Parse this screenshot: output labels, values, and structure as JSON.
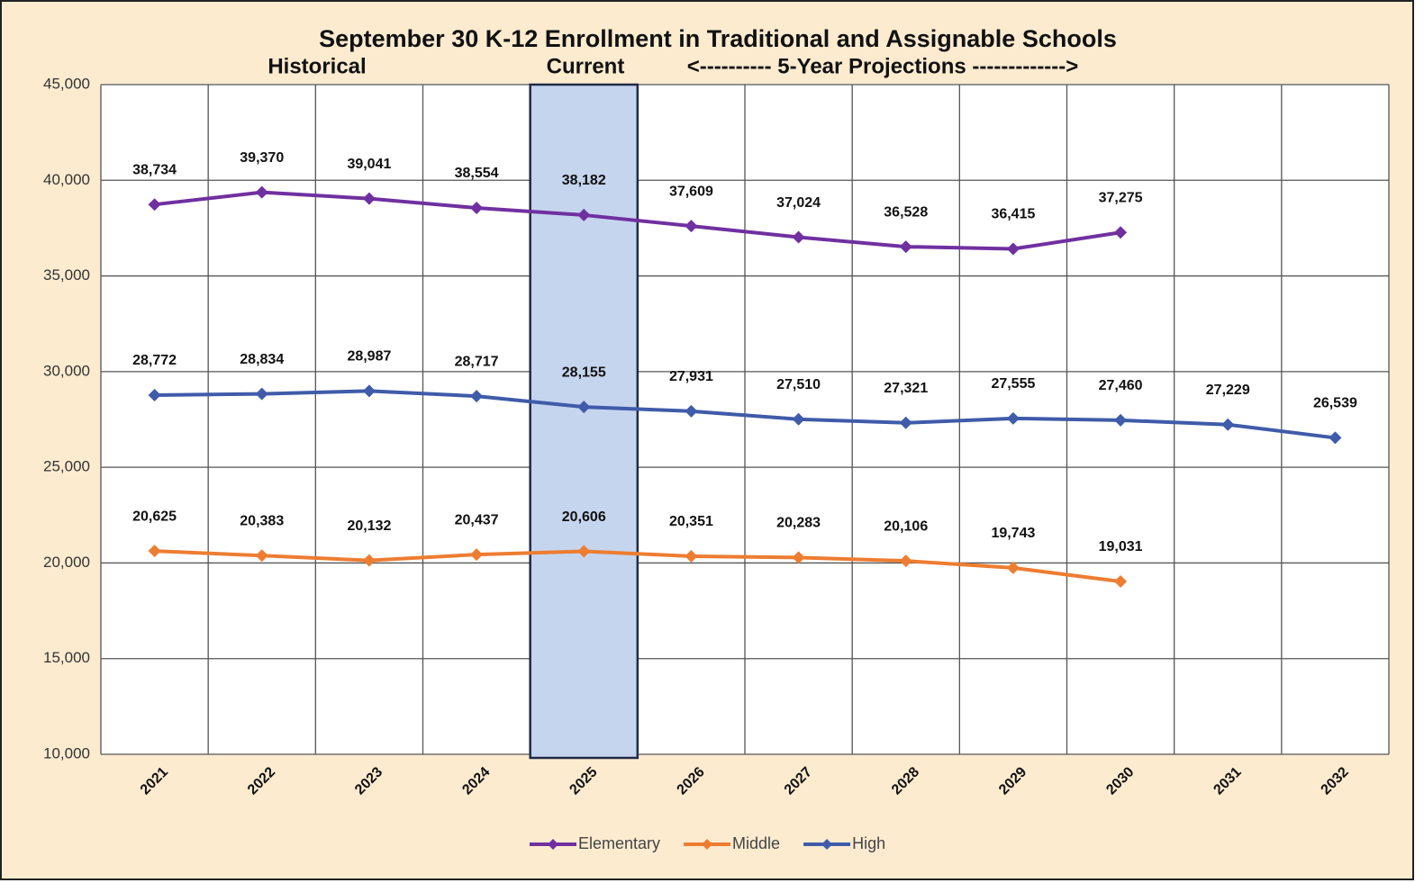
{
  "chart_data": {
    "type": "line",
    "title": "September 30 K-12 Enrollment in Traditional and Assignable Schools",
    "annotations": [
      "Historical",
      "Current",
      "<---------- 5-Year Projections ------------->"
    ],
    "categories": [
      "2021",
      "2022",
      "2023",
      "2024",
      "2025",
      "2026",
      "2027",
      "2028",
      "2029",
      "2030",
      "2031",
      "2032"
    ],
    "series": [
      {
        "name": "Elementary",
        "color": "#7030A0",
        "values": [
          38734,
          39370,
          39041,
          38554,
          38182,
          37609,
          37024,
          36528,
          36415,
          37275,
          null,
          null
        ],
        "value_labels": [
          "38,734",
          "39,370",
          "39,041",
          "38,554",
          "38,182",
          "37,609",
          "37,024",
          "36,528",
          "36,415",
          "37,275",
          null,
          null
        ]
      },
      {
        "name": "Middle",
        "color": "#ED7D31",
        "values": [
          20625,
          20383,
          20132,
          20437,
          20606,
          20351,
          20283,
          20106,
          19743,
          19031,
          null,
          null
        ],
        "value_labels": [
          "20,625",
          "20,383",
          "20,132",
          "20,437",
          "20,606",
          "20,351",
          "20,283",
          "20,106",
          "19,743",
          "19,031",
          null,
          null
        ]
      },
      {
        "name": "High",
        "color": "#3F5BA9",
        "values": [
          28772,
          28834,
          28987,
          28717,
          28155,
          27931,
          27510,
          27321,
          27555,
          27460,
          27229,
          26539
        ],
        "value_labels": [
          "28,772",
          "28,834",
          "28,987",
          "28,717",
          "28,155",
          "27,931",
          "27,510",
          "27,321",
          "27,555",
          "27,460",
          "27,229",
          "26,539"
        ]
      }
    ],
    "highlight_category": "2025",
    "ylim": [
      10000,
      45000
    ],
    "yticks": [
      {
        "value": 10000,
        "label": "10,000"
      },
      {
        "value": 15000,
        "label": "15,000"
      },
      {
        "value": 20000,
        "label": "20,000"
      },
      {
        "value": 25000,
        "label": "25,000"
      },
      {
        "value": 30000,
        "label": "30,000"
      },
      {
        "value": 35000,
        "label": "35,000"
      },
      {
        "value": 40000,
        "label": "40,000"
      },
      {
        "value": 45000,
        "label": "45,000"
      }
    ],
    "grid": true,
    "legend": "bottom"
  }
}
